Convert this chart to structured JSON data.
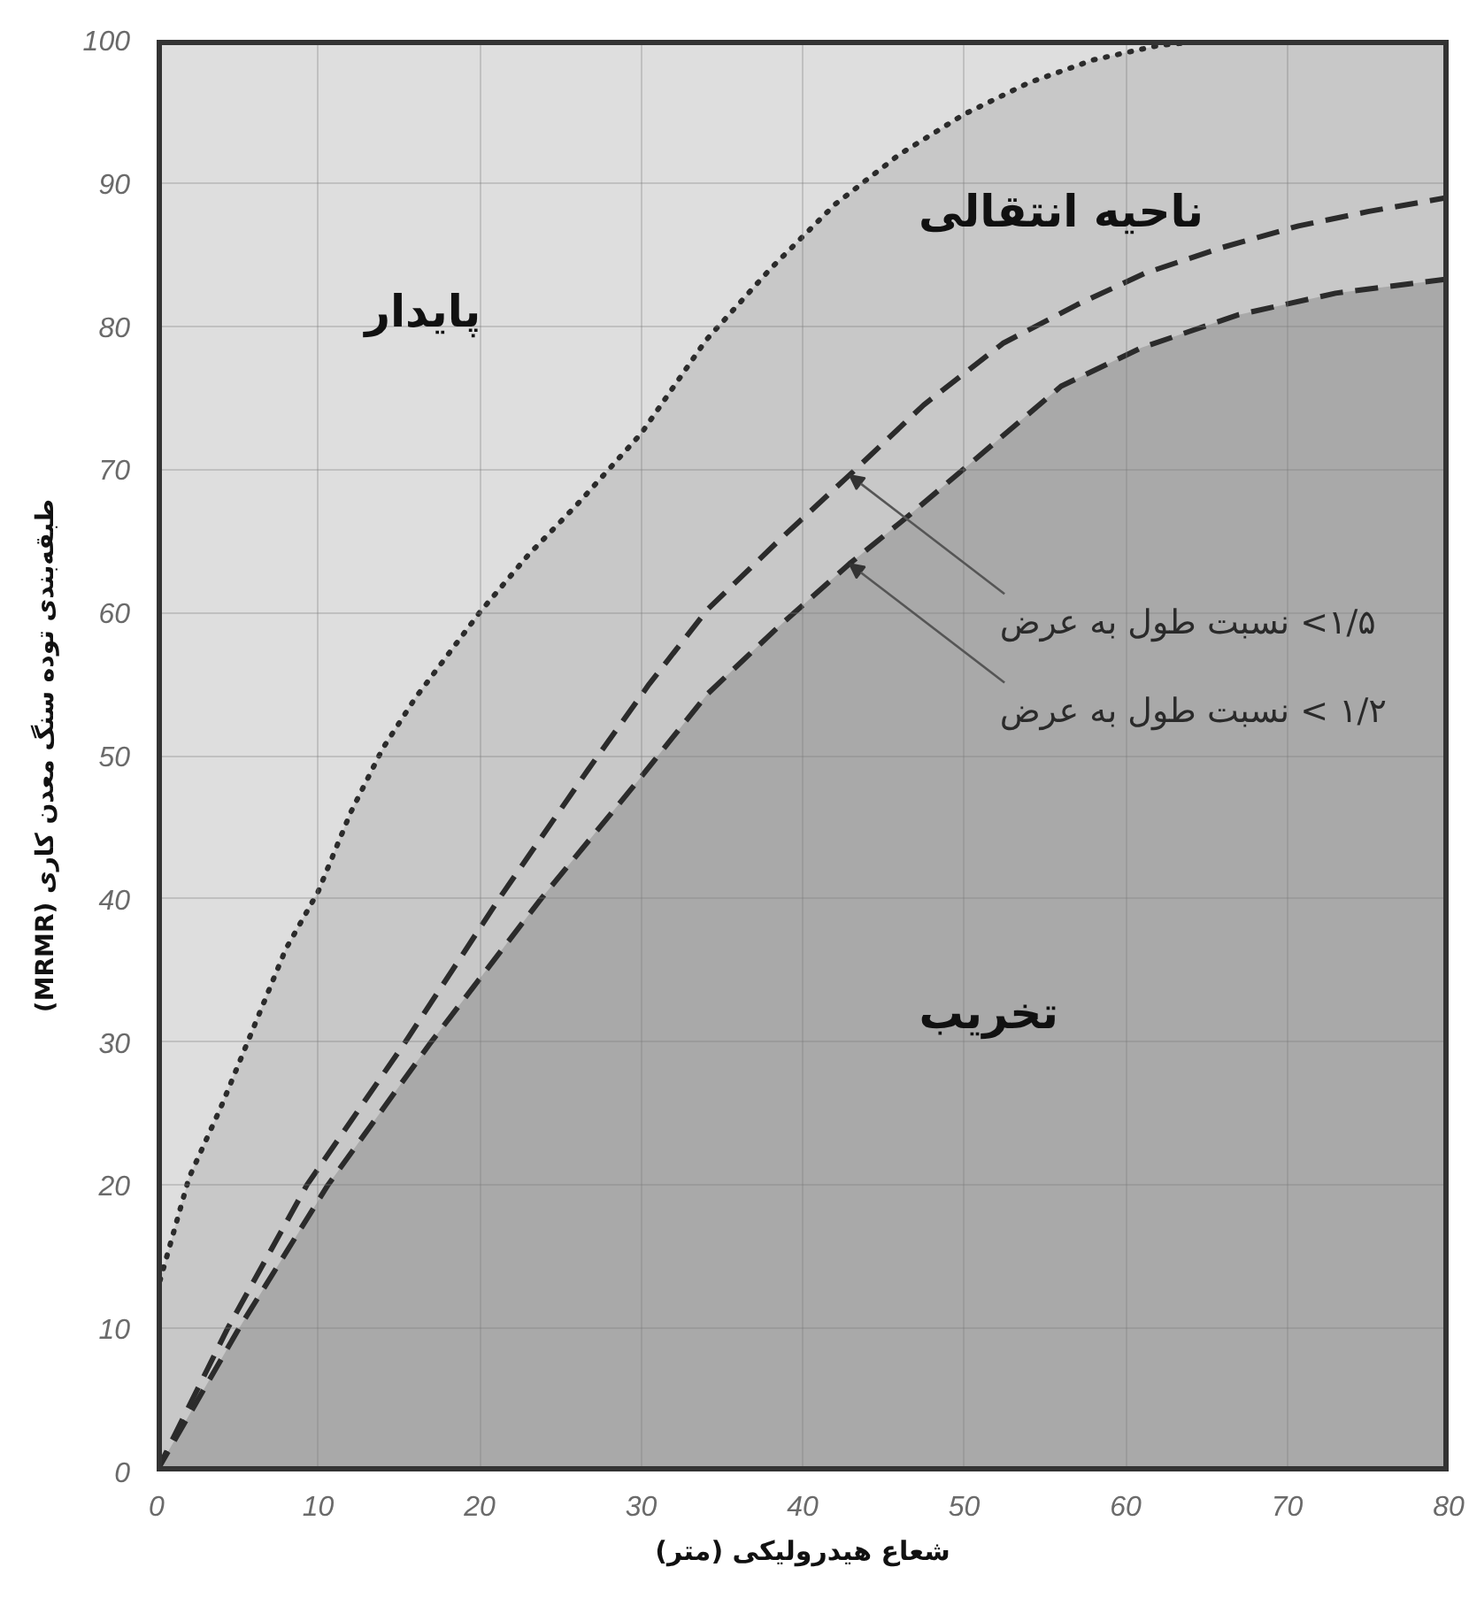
{
  "chart_data": {
    "type": "line",
    "xlabel": "شعاع هیدرولیکی (متر)",
    "ylabel": "طبقه‌بندی توده سنگ معدن کاری (MRMR)",
    "xlim": [
      0,
      80
    ],
    "ylim": [
      0,
      100
    ],
    "xticks": [
      0,
      10,
      20,
      30,
      40,
      50,
      60,
      70,
      80
    ],
    "yticks": [
      0,
      10,
      20,
      30,
      40,
      50,
      60,
      70,
      80,
      90,
      100
    ],
    "grid": true,
    "series": [
      {
        "type": "area",
        "color": "#c8c8c8",
        "line_style": "dotted",
        "x": [
          0,
          2,
          4,
          6,
          8,
          10,
          12,
          14,
          16,
          18,
          20,
          23,
          26,
          30,
          34,
          38,
          42,
          46,
          50,
          54,
          58,
          62,
          65.5,
          70,
          75,
          80
        ],
        "values": [
          12.5,
          20.5,
          25.5,
          31,
          36.5,
          40.5,
          46,
          50.5,
          54,
          57,
          60,
          64,
          67.5,
          72.5,
          79,
          84,
          88.5,
          92,
          94.8,
          97,
          98.6,
          99.6,
          100,
          100,
          100,
          100
        ]
      },
      {
        "type": "area",
        "color": "#a9a9a9",
        "line_style": "dashed",
        "x": [
          0,
          5.1,
          10.6,
          17,
          23.8,
          29.7,
          34.1,
          38.5,
          42.9,
          46.5,
          51,
          56,
          61,
          67,
          73,
          80
        ],
        "values": [
          0,
          10,
          20,
          30,
          40,
          48.1,
          54.3,
          59,
          63.4,
          66.7,
          71,
          75.8,
          78.5,
          80.8,
          82.3,
          83.3
        ]
      },
      {
        "color": "#2b2b2b",
        "line_style": "dashed",
        "x": [
          0,
          4.4,
          9.3,
          15.4,
          21.2,
          26.7,
          30.5,
          34.1,
          38.5,
          42.9,
          47.5,
          52.4,
          57,
          61.2,
          66,
          70.7,
          75,
          80
        ],
        "values": [
          0,
          10,
          20,
          30,
          40,
          49,
          55,
          60.2,
          65,
          69.6,
          74.5,
          78.8,
          81.5,
          83.7,
          85.5,
          87,
          88,
          89
        ]
      }
    ],
    "annotations": [
      "پایدار",
      "ناحیه انتقالی",
      "تخریب",
      {
        "text": "۱/۵> نسبت طول به عرض",
        "x": 42.9,
        "y": 69.6
      },
      {
        "text": "۱/۲ > نسبت طول به عرض",
        "x": 42.9,
        "y": 63.4
      }
    ]
  }
}
